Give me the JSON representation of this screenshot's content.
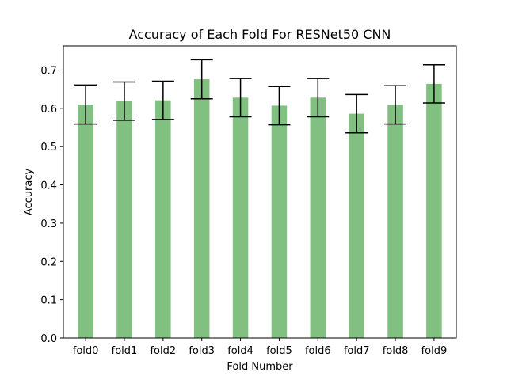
{
  "chart_data": {
    "type": "bar",
    "title": "Accuracy of Each Fold For RESNet50 CNN",
    "xlabel": "Fold Number",
    "ylabel": "Accuracy",
    "categories": [
      "fold0",
      "fold1",
      "fold2",
      "fold3",
      "fold4",
      "fold5",
      "fold6",
      "fold7",
      "fold8",
      "fold9"
    ],
    "values": [
      0.61,
      0.619,
      0.621,
      0.676,
      0.628,
      0.607,
      0.628,
      0.586,
      0.609,
      0.664
    ],
    "error": [
      0.051,
      0.05,
      0.05,
      0.051,
      0.05,
      0.05,
      0.05,
      0.05,
      0.05,
      0.05
    ],
    "ylim": [
      0,
      0.763
    ],
    "yticks": [
      "0.0",
      "0.1",
      "0.2",
      "0.3",
      "0.4",
      "0.5",
      "0.6",
      "0.7"
    ],
    "grid": false,
    "bar_color": "#81c081",
    "errorbar_color": "#000000"
  }
}
